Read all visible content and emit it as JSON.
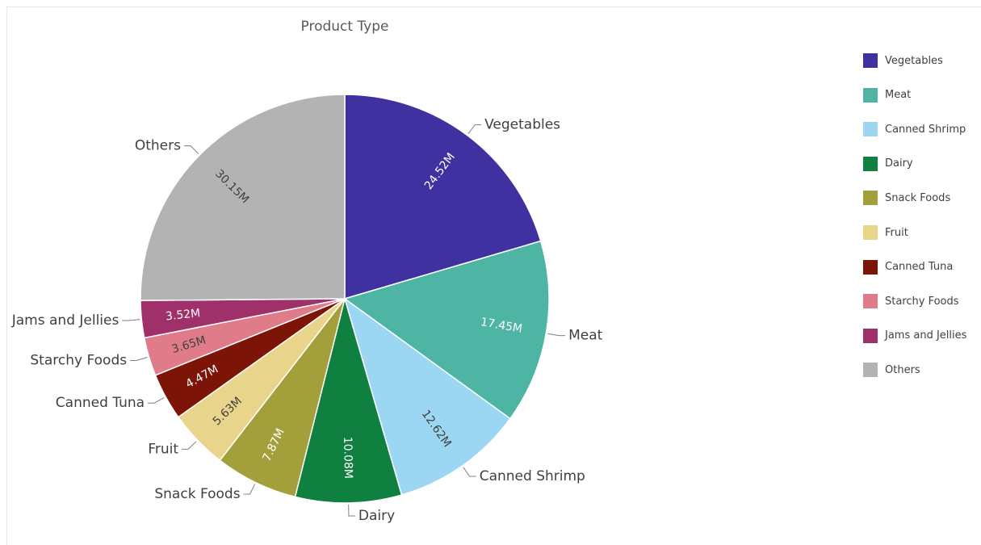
{
  "chart_data": {
    "type": "pie",
    "title": "Product Type",
    "categories": [
      "Vegetables",
      "Meat",
      "Canned Shrimp",
      "Dairy",
      "Snack Foods",
      "Fruit",
      "Canned Tuna",
      "Starchy Foods",
      "Jams and Jellies",
      "Others"
    ],
    "values": [
      24.52,
      17.45,
      12.62,
      10.08,
      7.87,
      5.63,
      4.47,
      3.65,
      3.52,
      30.15
    ],
    "value_labels": [
      "24.52M",
      "17.45M",
      "12.62M",
      "10.08M",
      "7.87M",
      "5.63M",
      "4.47M",
      "3.65M",
      "3.52M",
      "30.15M"
    ],
    "colors": [
      "#3f31a0",
      "#4eb5a5",
      "#9bd6f2",
      "#108040",
      "#a3a03c",
      "#e8d48b",
      "#7d1408",
      "#e07c8a",
      "#a0306a",
      "#b3b3b3"
    ],
    "legend": {
      "position": "right",
      "entries": [
        "Vegetables",
        "Meat",
        "Canned Shrimp",
        "Dairy",
        "Snack Foods",
        "Fruit",
        "Canned Tuna",
        "Starchy Foods",
        "Jams and Jellies",
        "Others"
      ]
    },
    "start_angle": "12 o'clock",
    "direction": "clockwise"
  }
}
